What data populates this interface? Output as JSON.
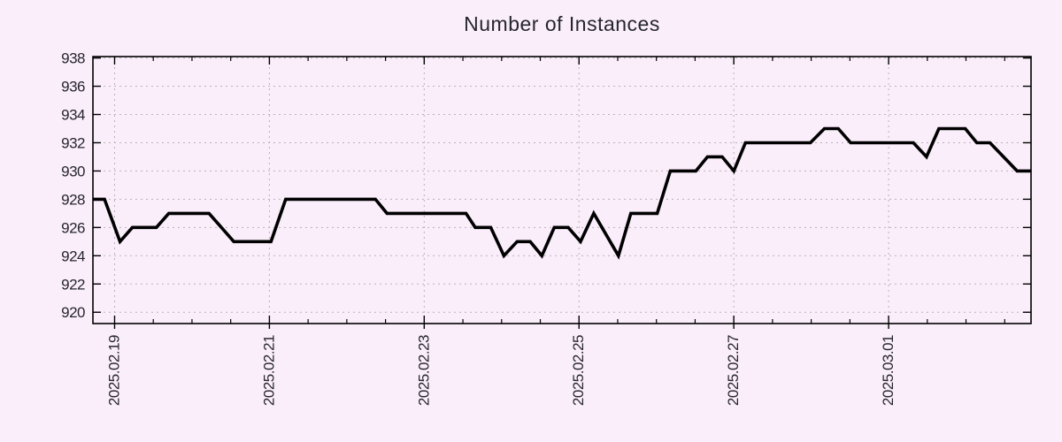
{
  "chart_data": {
    "type": "line",
    "title": "Number of Instances",
    "colors": {
      "background": "#faeefa",
      "line": "#000000",
      "grid": "#b9b1b9",
      "axis": "#000000",
      "text": "#26262e"
    },
    "layout": {
      "grid": true,
      "legend": "none",
      "x_tick_label_rotation_deg": -90
    },
    "x_axis": {
      "unit": "days since 2025.02.19 00:00",
      "range": [
        -0.28,
        11.84
      ],
      "minor_tick_interval_days": 0.5,
      "major_ticks": [
        {
          "t": 0,
          "label": "2025.02.19"
        },
        {
          "t": 2,
          "label": "2025.02.21"
        },
        {
          "t": 4,
          "label": "2025.02.23"
        },
        {
          "t": 6,
          "label": "2025.02.25"
        },
        {
          "t": 8,
          "label": "2025.02.27"
        },
        {
          "t": 10,
          "label": "2025.03.01"
        }
      ]
    },
    "y_axis": {
      "range": [
        919.2,
        938.1
      ],
      "ticks": [
        920,
        922,
        924,
        926,
        928,
        930,
        932,
        934,
        936,
        938
      ]
    },
    "series": [
      {
        "points": [
          [
            -0.28,
            928
          ],
          [
            -0.13,
            928
          ],
          [
            0.07,
            925
          ],
          [
            0.23,
            926
          ],
          [
            0.54,
            926
          ],
          [
            0.7,
            927
          ],
          [
            1.22,
            927
          ],
          [
            1.54,
            925
          ],
          [
            2.02,
            925
          ],
          [
            2.21,
            928
          ],
          [
            3.37,
            928
          ],
          [
            3.52,
            927
          ],
          [
            4.54,
            927
          ],
          [
            4.66,
            926
          ],
          [
            4.86,
            926
          ],
          [
            5.03,
            924
          ],
          [
            5.2,
            925
          ],
          [
            5.37,
            925
          ],
          [
            5.52,
            924
          ],
          [
            5.68,
            926
          ],
          [
            5.86,
            926
          ],
          [
            6.02,
            925
          ],
          [
            6.19,
            927
          ],
          [
            6.51,
            924
          ],
          [
            6.67,
            927
          ],
          [
            7.01,
            927
          ],
          [
            7.18,
            930
          ],
          [
            7.51,
            930
          ],
          [
            7.66,
            931
          ],
          [
            7.85,
            931
          ],
          [
            8.0,
            930
          ],
          [
            8.15,
            932
          ],
          [
            8.99,
            932
          ],
          [
            9.17,
            933
          ],
          [
            9.35,
            933
          ],
          [
            9.51,
            932
          ],
          [
            10.32,
            932
          ],
          [
            10.49,
            931
          ],
          [
            10.65,
            933
          ],
          [
            10.99,
            933
          ],
          [
            11.14,
            932
          ],
          [
            11.31,
            932
          ],
          [
            11.66,
            930
          ],
          [
            11.84,
            930
          ]
        ]
      }
    ]
  }
}
